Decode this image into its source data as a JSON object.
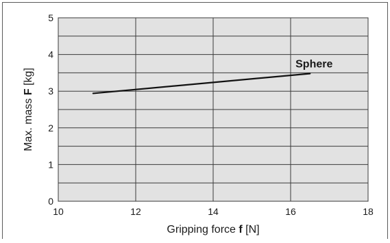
{
  "chart_data": {
    "type": "line",
    "title": "",
    "xlabel_prefix": "Gripping force ",
    "xlabel_symbol": "f",
    "xlabel_unit": " [N]",
    "ylabel_prefix": "Max. mass ",
    "ylabel_symbol": "F",
    "ylabel_unit": " [kg]",
    "xlim": [
      10,
      18
    ],
    "ylim": [
      0,
      5
    ],
    "x_ticks": [
      10,
      12,
      14,
      16,
      18
    ],
    "y_ticks": [
      0,
      1,
      2,
      3,
      4,
      5
    ],
    "y_minor_gridlines": [
      0.5,
      1.5,
      2.5,
      3.5,
      4.5
    ],
    "grid": true,
    "plot_background": "#e2e2e2",
    "grid_color": "#3a3a3a",
    "line_color": "#111111",
    "series": [
      {
        "name": "Sphere",
        "x": [
          10.9,
          16.5
        ],
        "y": [
          2.94,
          3.48
        ]
      }
    ]
  }
}
